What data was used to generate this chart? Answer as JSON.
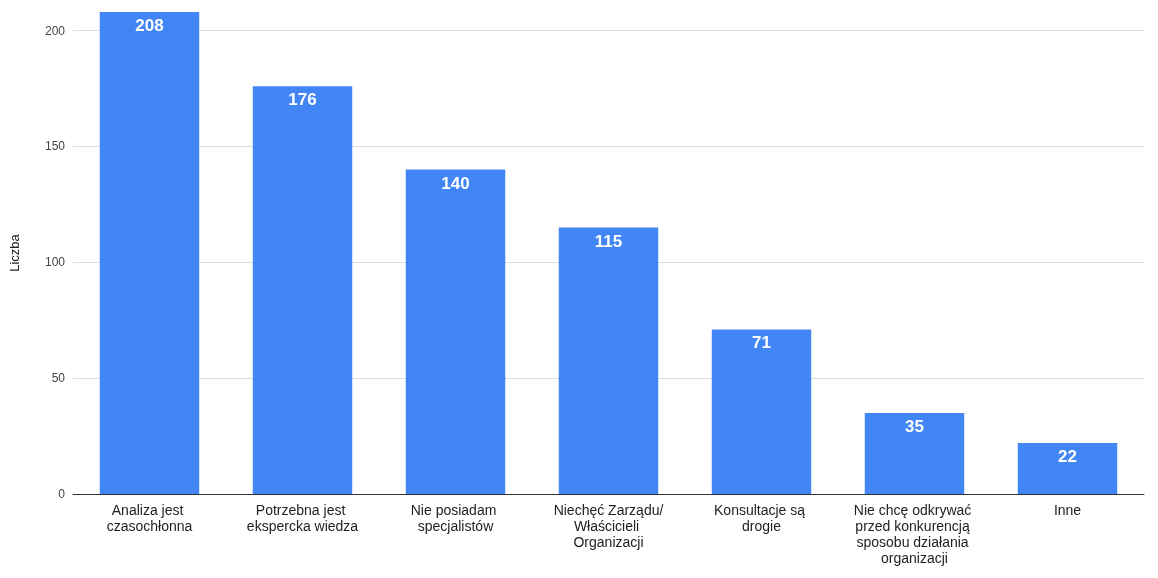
{
  "chart_data": {
    "type": "bar",
    "ylabel": "Liczba",
    "categories": [
      "Analiza jest czasochłonna",
      "Potrzebna jest ekspercka wiedza",
      "Nie posiadam specjalistów",
      "Niechęć Zarządu/Właścicieli Organizacji",
      "Konsultacje są drogie",
      "Nie chcę odkrywać przed konkurencją sposobu działania organizacji",
      "Inne"
    ],
    "values": [
      208,
      176,
      140,
      115,
      71,
      35,
      22
    ],
    "color": "#4285f4",
    "ylim": [
      0,
      208
    ],
    "yticks": [
      0,
      50,
      100,
      150,
      200
    ],
    "grid": "y",
    "data_labels": true
  }
}
